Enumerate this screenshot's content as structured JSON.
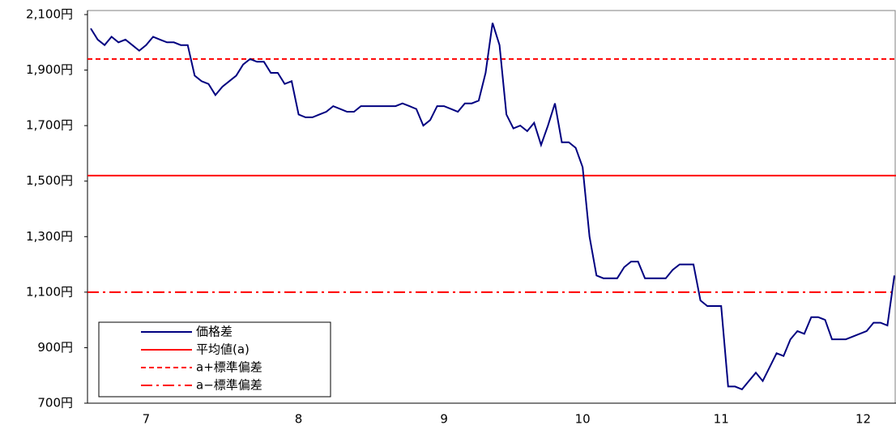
{
  "chart_data": {
    "type": "line",
    "series": [
      {
        "name": "価格差",
        "color": "#000080",
        "values": [
          2050,
          2010,
          1990,
          2020,
          2000,
          2010,
          1990,
          1970,
          1990,
          2020,
          2010,
          2000,
          2000,
          1990,
          1990,
          1880,
          1860,
          1850,
          1810,
          1840,
          1860,
          1880,
          1920,
          1940,
          1930,
          1930,
          1890,
          1890,
          1850,
          1860,
          1740,
          1730,
          1730,
          1740,
          1750,
          1770,
          1760,
          1750,
          1750,
          1770,
          1770,
          1770,
          1770,
          1770,
          1770,
          1780,
          1770,
          1760,
          1700,
          1720,
          1770,
          1770,
          1760,
          1750,
          1780,
          1780,
          1790,
          1890,
          2070,
          1990,
          1740,
          1690,
          1700,
          1680,
          1710,
          1630,
          1700,
          1780,
          1640,
          1640,
          1620,
          1550,
          1300,
          1160,
          1150,
          1150,
          1150,
          1190,
          1210,
          1210,
          1150,
          1150,
          1150,
          1150,
          1180,
          1200,
          1200,
          1200,
          1070,
          1050,
          1050,
          1050,
          760,
          760,
          750,
          780,
          810,
          780,
          830,
          880,
          870,
          930,
          960,
          950,
          1010,
          1010,
          1000,
          930,
          930,
          930,
          940,
          950,
          960,
          990,
          990,
          980,
          1160
        ]
      }
    ],
    "reference_lines": [
      {
        "name": "平均値(a)",
        "value": 1520,
        "color": "#ff0000",
        "style": "solid"
      },
      {
        "name": "a+標準偏差",
        "value": 1940,
        "color": "#ff0000",
        "style": "dashed"
      },
      {
        "name": "a−標準偏差",
        "value": 1100,
        "color": "#ff0000",
        "style": "dashdot"
      }
    ],
    "xlim": [
      0,
      116
    ],
    "xticks": [
      {
        "value": 8,
        "label": "7"
      },
      {
        "value": 30,
        "label": "8"
      },
      {
        "value": 51,
        "label": "9"
      },
      {
        "value": 71,
        "label": "10"
      },
      {
        "value": 91,
        "label": "11"
      },
      {
        "value": 111.5,
        "label": "12"
      }
    ],
    "ylim": [
      700,
      2100
    ],
    "yticks": [
      {
        "value": 700,
        "label": "700円"
      },
      {
        "value": 900,
        "label": "900円"
      },
      {
        "value": 1100,
        "label": "1,100円"
      },
      {
        "value": 1300,
        "label": "1,300円"
      },
      {
        "value": 1500,
        "label": "1,500円"
      },
      {
        "value": 1700,
        "label": "1,700円"
      },
      {
        "value": 1900,
        "label": "1,900円"
      },
      {
        "value": 2100,
        "label": "2,100円"
      }
    ],
    "legend": "bottom-left"
  }
}
